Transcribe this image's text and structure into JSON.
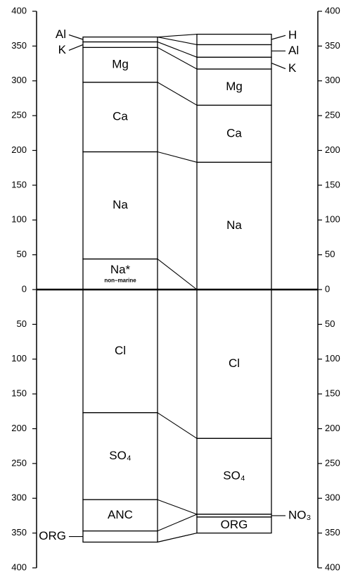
{
  "chart_data": {
    "type": "ion-balance",
    "ylim": [
      -400,
      400
    ],
    "yticks": [
      400,
      350,
      300,
      250,
      200,
      150,
      100,
      50,
      0,
      {
        "value": -50,
        "label": "50"
      },
      {
        "value": -100,
        "label": "100"
      },
      {
        "value": -150,
        "label": "150"
      },
      {
        "value": -200,
        "label": "200"
      },
      {
        "value": -250,
        "label": "250"
      },
      {
        "value": -300,
        "label": "300"
      },
      {
        "value": -350,
        "label": "350"
      },
      {
        "value": -400,
        "label": "400"
      }
    ],
    "columns": [
      {
        "cations": [
          {
            "name": "Na*",
            "note": "non–marine",
            "value": 44
          },
          {
            "name": "Na",
            "value": 154
          },
          {
            "name": "Ca",
            "value": 100
          },
          {
            "name": "Mg",
            "value": 50
          },
          {
            "name": "K",
            "value": 8
          },
          {
            "name": "Al",
            "value": 7
          }
        ],
        "anions": [
          {
            "name": "Cl",
            "value": -177
          },
          {
            "name": "SO₄",
            "value": -125
          },
          {
            "name": "ANC",
            "value": -45
          },
          {
            "name": "ORG",
            "value": -16
          }
        ]
      },
      {
        "cations": [
          {
            "name": "Na",
            "value": 183
          },
          {
            "name": "Ca",
            "value": 82
          },
          {
            "name": "Mg",
            "value": 52
          },
          {
            "name": "K",
            "value": 17
          },
          {
            "name": "Al",
            "value": 18
          },
          {
            "name": "H",
            "value": 15
          }
        ],
        "anions": [
          {
            "name": "Cl",
            "value": -214
          },
          {
            "name": "SO₄",
            "value": -109
          },
          {
            "name": "NO₃",
            "value": -4
          },
          {
            "name": "ORG",
            "value": -23
          }
        ]
      }
    ]
  }
}
